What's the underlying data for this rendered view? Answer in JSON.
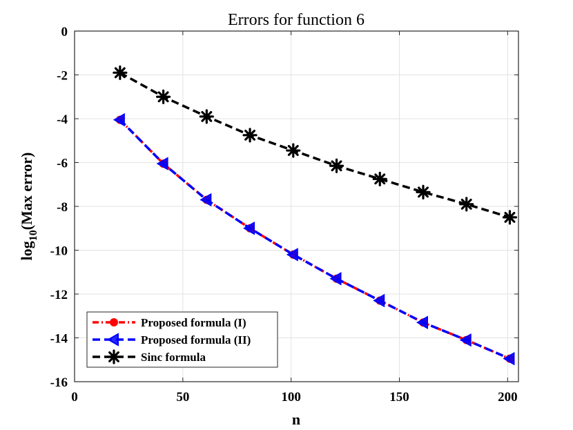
{
  "chart_data": {
    "type": "line",
    "title": "Errors for function 6",
    "xlabel": "n",
    "ylabel_main": "log",
    "ylabel_sub": "10",
    "ylabel_rest": "(Max error)",
    "xlim": [
      0,
      205
    ],
    "ylim": [
      -16,
      0
    ],
    "xticks": [
      0,
      50,
      100,
      150,
      200
    ],
    "yticks": [
      0,
      -2,
      -4,
      -6,
      -8,
      -10,
      -12,
      -14,
      -16
    ],
    "grid": true,
    "legend_position": "bottom-left",
    "x": [
      21,
      41,
      61,
      81,
      101,
      121,
      141,
      161,
      181,
      201
    ],
    "series": [
      {
        "name": "Proposed formula (I)",
        "color": "#ff0000",
        "line": "dash-dot",
        "marker": "circle",
        "values": [
          -4.05,
          -6.05,
          -7.7,
          -9.0,
          -10.2,
          -11.3,
          -12.3,
          -13.3,
          -14.1,
          -14.95
        ]
      },
      {
        "name": "Proposed formula (II)",
        "color": "#0000ff",
        "line": "dashed",
        "marker": "triangle-left",
        "values": [
          -4.05,
          -6.05,
          -7.7,
          -9.0,
          -10.2,
          -11.3,
          -12.3,
          -13.3,
          -14.1,
          -14.95
        ]
      },
      {
        "name": "Sinc formula",
        "color": "#000000",
        "line": "dashed",
        "marker": "asterisk",
        "values": [
          -1.9,
          -3.0,
          -3.9,
          -4.75,
          -5.45,
          -6.15,
          -6.75,
          -7.35,
          -7.9,
          -8.5
        ]
      }
    ]
  }
}
